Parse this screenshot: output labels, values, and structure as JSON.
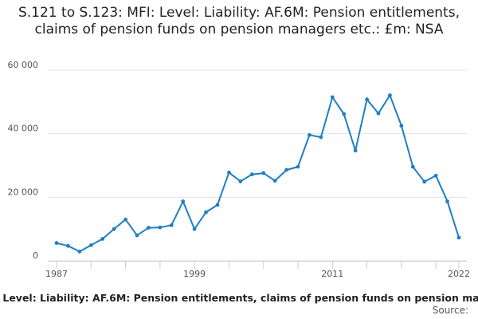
{
  "chart_data": {
    "type": "line",
    "title": "S.121 to S.123: MFI: Level: Liability: AF.6M: Pension entitlements, claims of pension funds on pension managers etc.: £m: NSA",
    "series": [
      {
        "name": ": Level: Liability: AF.6M: Pension entitlements, claims of pension funds on pension ma",
        "color": "#1f7fc1",
        "x": [
          1987,
          1988,
          1989,
          1990,
          1991,
          1992,
          1993,
          1994,
          1995,
          1996,
          1997,
          1998,
          1999,
          2000,
          2001,
          2002,
          2003,
          2004,
          2005,
          2006,
          2007,
          2008,
          2009,
          2010,
          2011,
          2012,
          2013,
          2014,
          2015,
          2016,
          2017,
          2018,
          2019,
          2020,
          2021,
          2022
        ],
        "values": [
          5600,
          4700,
          2900,
          4900,
          6900,
          10000,
          13000,
          8000,
          10400,
          10500,
          11200,
          18700,
          10000,
          15300,
          17600,
          27800,
          25000,
          27200,
          27600,
          25200,
          28600,
          29600,
          39600,
          38900,
          51500,
          46200,
          34700,
          50800,
          46400,
          52100,
          42500,
          29600,
          24900,
          26800,
          18700,
          7300
        ]
      }
    ],
    "x_ticks": [
      "1987",
      "1999",
      "2011",
      "2022"
    ],
    "y_ticks": [
      {
        "value": 0,
        "label": "0"
      },
      {
        "value": 20000,
        "label": "20 000"
      },
      {
        "value": 40000,
        "label": "40 000"
      },
      {
        "value": 60000,
        "label": "60 000"
      }
    ],
    "xlim": [
      1987,
      2022
    ],
    "ylim": [
      0,
      60000
    ],
    "grid": "horizontal",
    "source_label": "Source:"
  }
}
